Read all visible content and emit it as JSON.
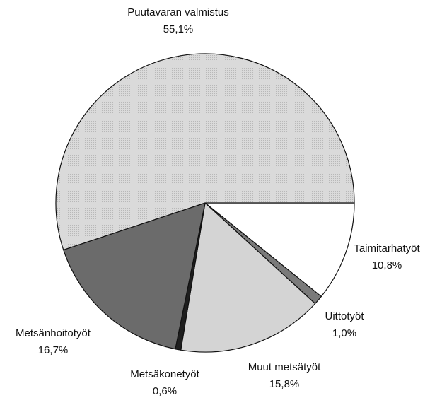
{
  "chart_data": {
    "type": "pie",
    "categories": [
      "Taimitarhatyöt",
      "Uittotyöt",
      "Muut metsätyöt",
      "Metsäkonetyöt",
      "Metsänhoitotyöt",
      "Puutavaran valmistus"
    ],
    "values": [
      10.8,
      1.0,
      15.8,
      0.6,
      16.7,
      55.1
    ],
    "value_labels": [
      "10,8%",
      "1,0%",
      "15,8%",
      "0,6%",
      "16,7%",
      "55,1%"
    ],
    "colors": [
      "#ffffff",
      "#7a7a7a",
      "#d4d4d4",
      "#1e1e1e",
      "#6b6b6b",
      "#dadada"
    ]
  }
}
